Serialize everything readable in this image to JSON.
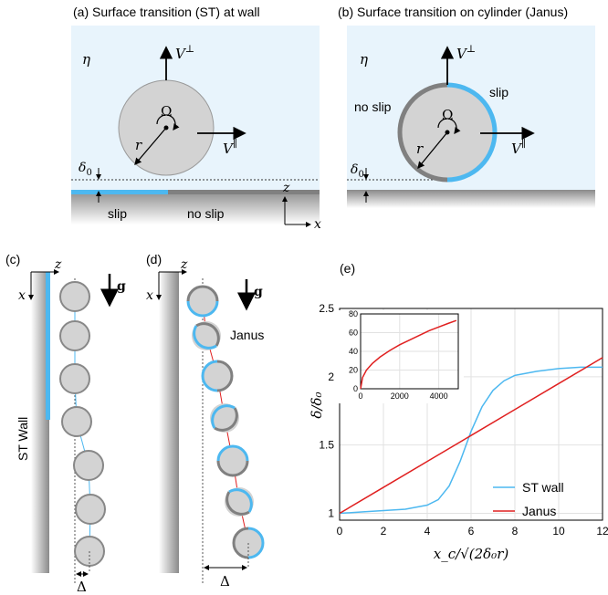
{
  "panel_a": {
    "title": "(a) Surface transition (ST) at wall",
    "eta": "η",
    "v_perp": "V",
    "v_perp_sup": "⊥",
    "v_par": "V",
    "v_par_sup": "∥",
    "omega": "Ω",
    "r": "r",
    "delta0": "δ",
    "delta0_sub": "0",
    "slip": "slip",
    "no_slip": "no slip",
    "axis_z": "z",
    "axis_x": "x"
  },
  "panel_b": {
    "title": "(b) Surface transition on cylinder (Janus)",
    "eta": "η",
    "v_perp": "V",
    "v_perp_sup": "⊥",
    "v_par": "V",
    "v_par_sup": "∥",
    "omega": "Ω",
    "r": "r",
    "delta0": "δ",
    "delta0_sub": "0",
    "slip": "slip",
    "no_slip": "no slip"
  },
  "panel_c": {
    "label": "(c)",
    "axis_z": "z",
    "axis_x": "x",
    "gravity": "g",
    "wall_label": "ST Wall",
    "delta": "Δ"
  },
  "panel_d": {
    "label": "(d)",
    "axis_z": "z",
    "axis_x": "x",
    "gravity": "g",
    "janus": "Janus",
    "delta": "Δ"
  },
  "panel_e": {
    "label": "(e)",
    "ylabel": "δ/δ₀",
    "xlabel": "x_c/√(2δ₀r)",
    "legend": [
      "ST wall",
      "Janus"
    ]
  },
  "colors": {
    "fluid": "#e8f4fc",
    "slip_blue": "#4db8f0",
    "no_slip_grey": "#808080",
    "cylinder": "#d3d3d3",
    "st_wall": "#4db8f0",
    "janus": "#e02020"
  },
  "chart_data": {
    "type": "line",
    "xlabel": "x_c/√(2δ₀r)",
    "ylabel": "δ/δ₀",
    "xlim": [
      0,
      12
    ],
    "ylim": [
      0.95,
      2.5
    ],
    "xticks": [
      "0",
      "2",
      "4",
      "6",
      "8",
      "10",
      "12"
    ],
    "yticks": [
      "1",
      "1.5",
      "2",
      "2.5"
    ],
    "grid": true,
    "legend_position": "bottom-right",
    "series": [
      {
        "name": "ST wall",
        "color": "#4db8f0",
        "x": [
          0,
          1,
          2,
          3,
          4,
          4.5,
          5,
          5.5,
          6,
          6.5,
          7,
          7.5,
          8,
          9,
          10,
          11,
          12
        ],
        "y": [
          1.0,
          1.01,
          1.02,
          1.03,
          1.06,
          1.1,
          1.2,
          1.38,
          1.6,
          1.78,
          1.9,
          1.97,
          2.01,
          2.04,
          2.06,
          2.07,
          2.07
        ]
      },
      {
        "name": "Janus",
        "color": "#e02020",
        "x": [
          0,
          2,
          4,
          6,
          8,
          10,
          12
        ],
        "y": [
          1.0,
          1.19,
          1.38,
          1.57,
          1.76,
          1.95,
          2.14
        ]
      }
    ],
    "inset": {
      "xlim": [
        0,
        5000
      ],
      "ylim": [
        0,
        80
      ],
      "xticks": [
        "0",
        "2000",
        "4000"
      ],
      "yticks": [
        "0",
        "20",
        "40",
        "60",
        "80"
      ],
      "series": [
        {
          "name": "Janus",
          "color": "#e02020",
          "x": [
            0,
            100,
            300,
            600,
            1000,
            1500,
            2000,
            2500,
            3000,
            3500,
            4000,
            4500,
            4900
          ],
          "y": [
            0,
            12,
            20,
            27,
            34,
            41,
            47,
            52,
            57,
            62,
            66,
            70,
            73
          ]
        }
      ]
    }
  }
}
